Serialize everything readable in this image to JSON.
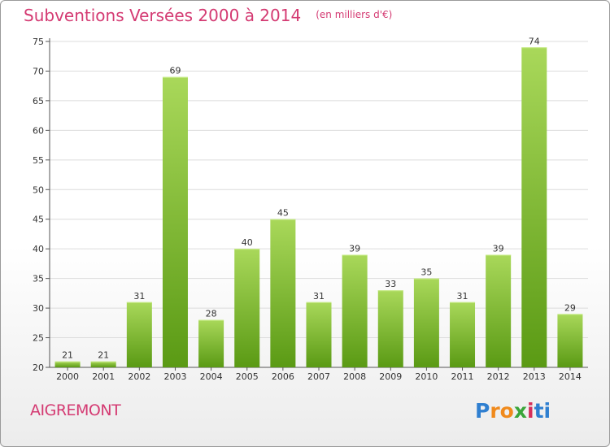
{
  "header": {
    "title": "Subventions Versées 2000 à 2014",
    "subtitle": "(en milliers d'€)"
  },
  "commune": "AIGREMONT",
  "brand": {
    "letters": [
      "P",
      "r",
      "o",
      "x",
      "i",
      "t",
      "i"
    ],
    "colors": [
      "#2f7fd0",
      "#f08a1c",
      "#f08a1c",
      "#3aa53a",
      "#d62f5a",
      "#2f7fd0",
      "#2f7fd0"
    ]
  },
  "colors": {
    "bar_light": "#a9d85a",
    "bar_dark": "#5a9a14",
    "title": "#d43a72",
    "grid": "#dcdcdc"
  },
  "chart_data": {
    "type": "bar",
    "title": "Subventions Versées 2000 à 2014",
    "subtitle": "(en milliers d'€)",
    "categories": [
      "2000",
      "2001",
      "2002",
      "2003",
      "2004",
      "2005",
      "2006",
      "2007",
      "2008",
      "2009",
      "2010",
      "2011",
      "2012",
      "2013",
      "2014"
    ],
    "values": [
      21,
      21,
      31,
      69,
      28,
      40,
      45,
      31,
      39,
      33,
      35,
      31,
      39,
      74,
      29
    ],
    "ylim": [
      20,
      75
    ],
    "yticks": [
      20,
      25,
      30,
      35,
      40,
      45,
      50,
      55,
      60,
      65,
      70,
      75
    ],
    "grid": true,
    "legend": "none"
  }
}
